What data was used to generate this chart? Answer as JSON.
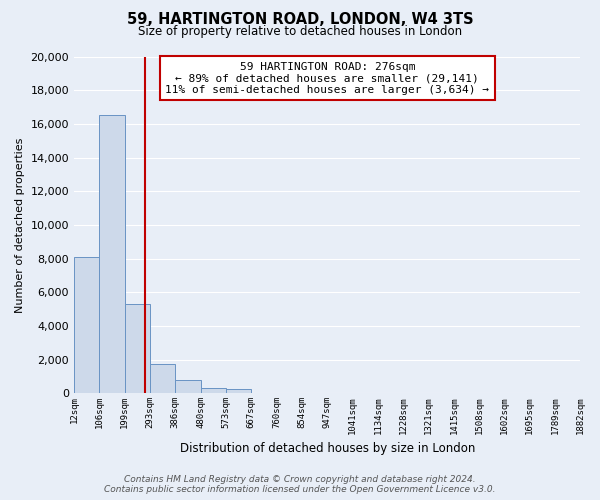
{
  "title": "59, HARTINGTON ROAD, LONDON, W4 3TS",
  "subtitle": "Size of property relative to detached houses in London",
  "xlabel": "Distribution of detached houses by size in London",
  "ylabel": "Number of detached properties",
  "bar_values": [
    8100,
    16500,
    5300,
    1750,
    800,
    300,
    280,
    0,
    0,
    0,
    0,
    0,
    0,
    0,
    0,
    0,
    0,
    0,
    0,
    0
  ],
  "bin_labels": [
    "12sqm",
    "106sqm",
    "199sqm",
    "293sqm",
    "386sqm",
    "480sqm",
    "573sqm",
    "667sqm",
    "760sqm",
    "854sqm",
    "947sqm",
    "1041sqm",
    "1134sqm",
    "1228sqm",
    "1321sqm",
    "1415sqm",
    "1508sqm",
    "1602sqm",
    "1695sqm",
    "1789sqm",
    "1882sqm"
  ],
  "bar_color": "#cdd9ea",
  "bar_edge_color": "#6993c4",
  "vline_color": "#c00000",
  "property_sqm": 276,
  "bin_edges": [
    12,
    106,
    199,
    293,
    386,
    480,
    573,
    667,
    760,
    854,
    947,
    1041,
    1134,
    1228,
    1321,
    1415,
    1508,
    1602,
    1695,
    1789,
    1882
  ],
  "annotation_title": "59 HARTINGTON ROAD: 276sqm",
  "annotation_line1": "← 89% of detached houses are smaller (29,141)",
  "annotation_line2": "11% of semi-detached houses are larger (3,634) →",
  "annotation_box_color": "#ffffff",
  "annotation_border_color": "#c00000",
  "ylim": [
    0,
    20000
  ],
  "yticks": [
    0,
    2000,
    4000,
    6000,
    8000,
    10000,
    12000,
    14000,
    16000,
    18000,
    20000
  ],
  "footer_line1": "Contains HM Land Registry data © Crown copyright and database right 2024.",
  "footer_line2": "Contains public sector information licensed under the Open Government Licence v3.0.",
  "bg_color": "#e8eef7",
  "grid_color": "#ffffff"
}
